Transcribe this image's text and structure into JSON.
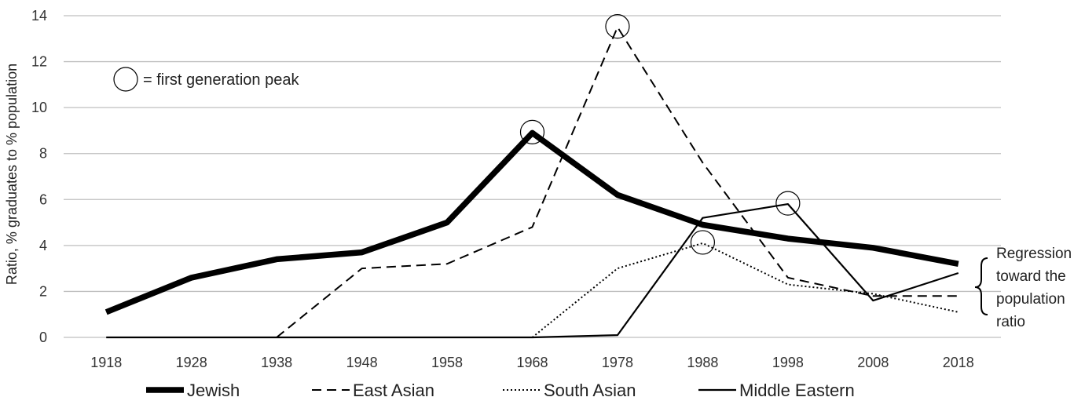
{
  "chart_data": {
    "type": "line",
    "title": "",
    "xlabel": "",
    "ylabel": "Ratio, % graduates to % population",
    "x": [
      "1918",
      "1928",
      "1938",
      "1948",
      "1958",
      "1968",
      "1978",
      "1988",
      "1998",
      "2008",
      "2018"
    ],
    "ylim": [
      0,
      14
    ],
    "yticks": [
      0,
      2,
      4,
      6,
      8,
      10,
      12,
      14
    ],
    "grid": true,
    "legend_position": "bottom",
    "series": [
      {
        "name": "Jewish",
        "style": "thick-solid",
        "values": [
          1.1,
          2.6,
          3.4,
          3.7,
          5.0,
          8.9,
          6.2,
          4.9,
          4.3,
          3.9,
          3.2
        ],
        "peak_index": 5
      },
      {
        "name": "East Asian",
        "style": "dashed",
        "values": [
          null,
          null,
          0,
          3.0,
          3.2,
          4.8,
          13.5,
          7.6,
          2.6,
          1.8,
          1.8
        ],
        "peak_index": 6
      },
      {
        "name": "South Asian",
        "style": "dotted",
        "values": [
          null,
          null,
          null,
          null,
          null,
          0,
          3.0,
          4.1,
          2.3,
          1.9,
          1.1
        ],
        "peak_index": 7
      },
      {
        "name": "Middle Eastern",
        "style": "solid",
        "values": [
          0,
          0,
          0,
          0,
          0,
          0,
          0.1,
          5.2,
          5.8,
          1.6,
          2.8
        ],
        "peak_index": 8
      }
    ],
    "annotations": {
      "peak_marker_legend": "= first generation peak",
      "bracket_note": [
        "Regression",
        "toward the",
        "population",
        "ratio"
      ]
    },
    "colors": {
      "lines": "#000000",
      "grid": "#bfbfbf"
    }
  }
}
